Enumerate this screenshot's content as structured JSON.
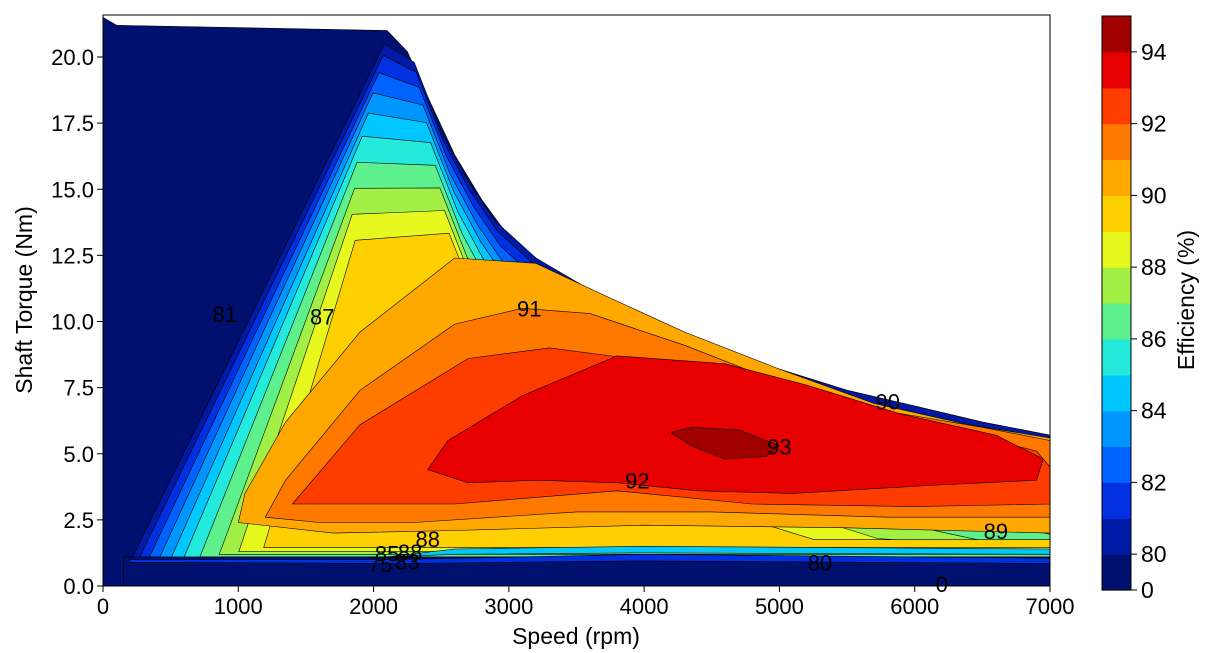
{
  "chart_data": {
    "type": "contour",
    "xlabel": "Speed  (rpm)",
    "ylabel": "Shaft Torque  (Nm)",
    "xlim": [
      0,
      7000
    ],
    "ylim": [
      0,
      21.5
    ],
    "x_ticks": [
      "0",
      "1000",
      "2000",
      "3000",
      "4000",
      "5000",
      "6000",
      "7000"
    ],
    "y_ticks": [
      "0.0",
      "2.5",
      "5.0",
      "7.5",
      "10.0",
      "12.5",
      "15.0",
      "17.5",
      "20.0"
    ],
    "colorbar": {
      "label": "Efficiency (%)",
      "ticks": [
        "0",
        "80",
        "82",
        "84",
        "86",
        "88",
        "90",
        "92",
        "94"
      ],
      "levels": [
        0,
        80,
        81,
        82,
        83,
        84,
        85,
        86,
        87,
        88,
        89,
        90,
        91,
        92,
        93,
        94
      ],
      "colors": [
        "#00106e",
        "#001aa6",
        "#0030e0",
        "#0062ff",
        "#0096ff",
        "#00c8ff",
        "#24eadc",
        "#5ef08c",
        "#a2f046",
        "#e6f81e",
        "#ffd000",
        "#ffa800",
        "#ff7800",
        "#ff3c00",
        "#e80000",
        "#a00000"
      ]
    },
    "contour_labels": [
      {
        "text": "81",
        "speed": 900,
        "torque": 10.2
      },
      {
        "text": "87",
        "speed": 1620,
        "torque": 10.1
      },
      {
        "text": "91",
        "speed": 3150,
        "torque": 10.4
      },
      {
        "text": "90",
        "speed": 5800,
        "torque": 6.9
      },
      {
        "text": "93",
        "speed": 5000,
        "torque": 5.2
      },
      {
        "text": "92",
        "speed": 3950,
        "torque": 3.9
      },
      {
        "text": "89",
        "speed": 6600,
        "torque": 2.0
      },
      {
        "text": "80",
        "speed": 5300,
        "torque": 0.8
      },
      {
        "text": "0",
        "speed": 6200,
        "torque": 0.0
      },
      {
        "text": "88",
        "speed": 2400,
        "torque": 1.7
      },
      {
        "text": "85",
        "speed": 2100,
        "torque": 1.15
      },
      {
        "text": "88",
        "speed": 2270,
        "torque": 1.2
      },
      {
        "text": "75",
        "speed": 2050,
        "torque": 0.75
      },
      {
        "text": "83",
        "speed": 2250,
        "torque": 0.85
      }
    ]
  }
}
